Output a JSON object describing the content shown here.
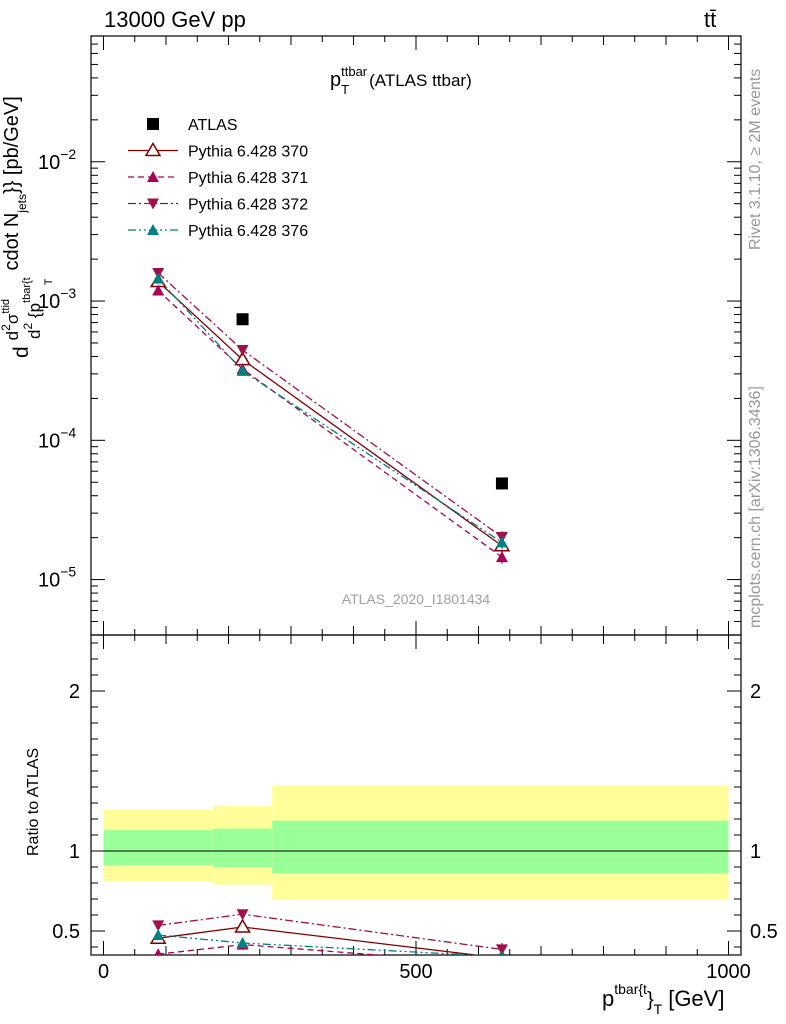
{
  "header": {
    "left": "13000 GeV pp",
    "right": "tt̄"
  },
  "side_labels": {
    "rivet": "Rivet 3.1.10, ≥ 2M events",
    "mcplots": "mcplots.cern.ch [arXiv:1306.3436]"
  },
  "chart_data": [
    {
      "type": "scatter",
      "panel": "main",
      "title_main": "p",
      "title_sup": "ttbar",
      "title_sub": "T",
      "title_rest": "(ATLAS ttbar)",
      "ylabel": "d d²σ^ttid / d² {p_T^tbar{t} cdot N_jets}} [pb/GeV]",
      "ylabel_parts": [
        "d",
        "d",
        "2",
        "σ",
        "ttid",
        "d",
        "2",
        " {p",
        "tbar{t",
        "T",
        "cdot N",
        "jets",
        "}} [pb/GeV]"
      ],
      "watermark": "ATLAS_2020_I1801434",
      "yscale": "log",
      "ylim": [
        4e-06,
        0.08
      ],
      "xlim": [
        -20,
        1020
      ],
      "ytick_labels": [
        {
          "base": "10",
          "exp": "−2",
          "value": 0.01
        },
        {
          "base": "10",
          "exp": "−3",
          "value": 0.001
        },
        {
          "base": "10",
          "exp": "−4",
          "value": 0.0001
        },
        {
          "base": "10",
          "exp": "−5",
          "value": 1e-05
        }
      ],
      "legend_position": "top-left",
      "series": [
        {
          "name": "ATLAS",
          "color": "#000000",
          "marker": "square",
          "line": "none",
          "x": [
            222.5,
            637.5
          ],
          "y": [
            0.00074,
            4.9e-05
          ],
          "yerr": [
            3e-05,
            3e-06
          ]
        },
        {
          "name": "Pythia 6.428 370",
          "color": "#800000",
          "marker": "triangle-open",
          "line": "solid",
          "x": [
            87.5,
            222.5,
            637.5
          ],
          "y": [
            0.00138,
            0.00038,
            1.75e-05
          ],
          "yerr": [
            3e-05,
            3e-05,
            2e-06
          ]
        },
        {
          "name": "Pythia 6.428 371",
          "color": "#aa0055",
          "marker": "triangle-up",
          "line": "dashed",
          "x": [
            87.5,
            222.5,
            637.5
          ],
          "y": [
            0.00119,
            0.000325,
            1.45e-05
          ],
          "yerr": [
            3e-05,
            2e-05,
            1.5e-06
          ]
        },
        {
          "name": "Pythia 6.428 372",
          "color": "#a0104a",
          "marker": "triangle-down",
          "line": "dashdot",
          "x": [
            87.5,
            222.5,
            637.5
          ],
          "y": [
            0.00159,
            0.000445,
            2.02e-05
          ],
          "yerr": [
            3e-05,
            3e-05,
            2e-06
          ]
        },
        {
          "name": "Pythia 6.428 376",
          "color": "#008080",
          "marker": "triangle-up",
          "line": "dashdotdot",
          "x": [
            87.5,
            222.5,
            637.5
          ],
          "y": [
            0.00145,
            0.000315,
            1.85e-05
          ],
          "yerr": [
            3e-05,
            2e-05,
            2e-06
          ]
        }
      ]
    },
    {
      "type": "scatter",
      "panel": "ratio",
      "ylabel": "Ratio to ATLAS",
      "xlabel_main": "p",
      "xlabel_sup": "tbar{t",
      "xlabel_mid": "}",
      "xlabel_sub": "T",
      "xlabel_unit": "[GeV]",
      "xlim": [
        -20,
        1020
      ],
      "ylim": [
        0.35,
        2.35
      ],
      "xtick_labels": [
        "0",
        "500",
        "1000"
      ],
      "xtick_values": [
        0,
        500,
        1000
      ],
      "ytick_labels": [
        "0.5",
        "1",
        "2"
      ],
      "ytick_values": [
        0.5,
        1,
        2
      ],
      "bands": [
        {
          "x0": 0,
          "x1": 175,
          "green": [
            0.91,
            1.13
          ],
          "yellow": [
            0.81,
            1.26
          ]
        },
        {
          "x0": 175,
          "x1": 270,
          "green": [
            0.9,
            1.14
          ],
          "yellow": [
            0.79,
            1.28
          ]
        },
        {
          "x0": 270,
          "x1": 1000,
          "green": [
            0.86,
            1.19
          ],
          "yellow": [
            0.7,
            1.41
          ]
        }
      ],
      "band_colors": {
        "green": "#99ff99",
        "yellow": "#ffff99"
      },
      "series": [
        {
          "name": "Pythia 6.428 370",
          "color": "#800000",
          "marker": "triangle-open",
          "line": "solid",
          "x": [
            87.5,
            222.5,
            637.5
          ],
          "y": [
            0.455,
            0.525,
            0.33
          ],
          "yerr": [
            0.015,
            0.02,
            0.03
          ]
        },
        {
          "name": "Pythia 6.428 371",
          "color": "#aa0055",
          "marker": "triangle-up",
          "line": "dashed",
          "x": [
            87.5,
            222.5,
            637.5
          ],
          "y": [
            0.355,
            0.415,
            0.29
          ],
          "yerr": [
            0.01,
            0.02,
            0.03
          ]
        },
        {
          "name": "Pythia 6.428 372",
          "color": "#a0104a",
          "marker": "triangle-down",
          "line": "dashdot",
          "x": [
            87.5,
            222.5,
            637.5
          ],
          "y": [
            0.535,
            0.605,
            0.385
          ],
          "yerr": [
            0.015,
            0.025,
            0.04
          ]
        },
        {
          "name": "Pythia 6.428 376",
          "color": "#008080",
          "marker": "triangle-up",
          "line": "dashdotdot",
          "x": [
            87.5,
            222.5,
            637.5
          ],
          "y": [
            0.475,
            0.425,
            0.34
          ],
          "yerr": [
            0.015,
            0.02,
            0.03
          ]
        }
      ]
    }
  ]
}
